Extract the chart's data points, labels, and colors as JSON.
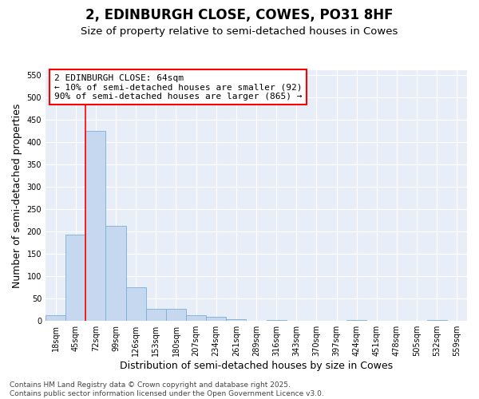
{
  "title": "2, EDINBURGH CLOSE, COWES, PO31 8HF",
  "subtitle": "Size of property relative to semi-detached houses in Cowes",
  "xlabel": "Distribution of semi-detached houses by size in Cowes",
  "ylabel": "Number of semi-detached properties",
  "categories": [
    "18sqm",
    "45sqm",
    "72sqm",
    "99sqm",
    "126sqm",
    "153sqm",
    "180sqm",
    "207sqm",
    "234sqm",
    "261sqm",
    "289sqm",
    "316sqm",
    "343sqm",
    "370sqm",
    "397sqm",
    "424sqm",
    "451sqm",
    "478sqm",
    "505sqm",
    "532sqm",
    "559sqm"
  ],
  "values": [
    13,
    193,
    425,
    212,
    76,
    27,
    27,
    12,
    9,
    4,
    0,
    3,
    0,
    0,
    0,
    3,
    0,
    0,
    0,
    3,
    0
  ],
  "bar_color": "#c5d8f0",
  "bar_edge_color": "#7aafd4",
  "vline_color": "red",
  "vline_x": 1.5,
  "annotation_title": "2 EDINBURGH CLOSE: 64sqm",
  "annotation_left": "← 10% of semi-detached houses are smaller (92)",
  "annotation_right": "90% of semi-detached houses are larger (865) →",
  "ylim": [
    0,
    560
  ],
  "yticks": [
    0,
    50,
    100,
    150,
    200,
    250,
    300,
    350,
    400,
    450,
    500,
    550
  ],
  "footer_line1": "Contains HM Land Registry data © Crown copyright and database right 2025.",
  "footer_line2": "Contains public sector information licensed under the Open Government Licence v3.0.",
  "fig_bg_color": "#ffffff",
  "plot_bg_color": "#e8eef8",
  "grid_color": "#ffffff",
  "title_fontsize": 12,
  "subtitle_fontsize": 9.5,
  "axis_label_fontsize": 9,
  "tick_fontsize": 7,
  "annotation_fontsize": 8,
  "footer_fontsize": 6.5
}
